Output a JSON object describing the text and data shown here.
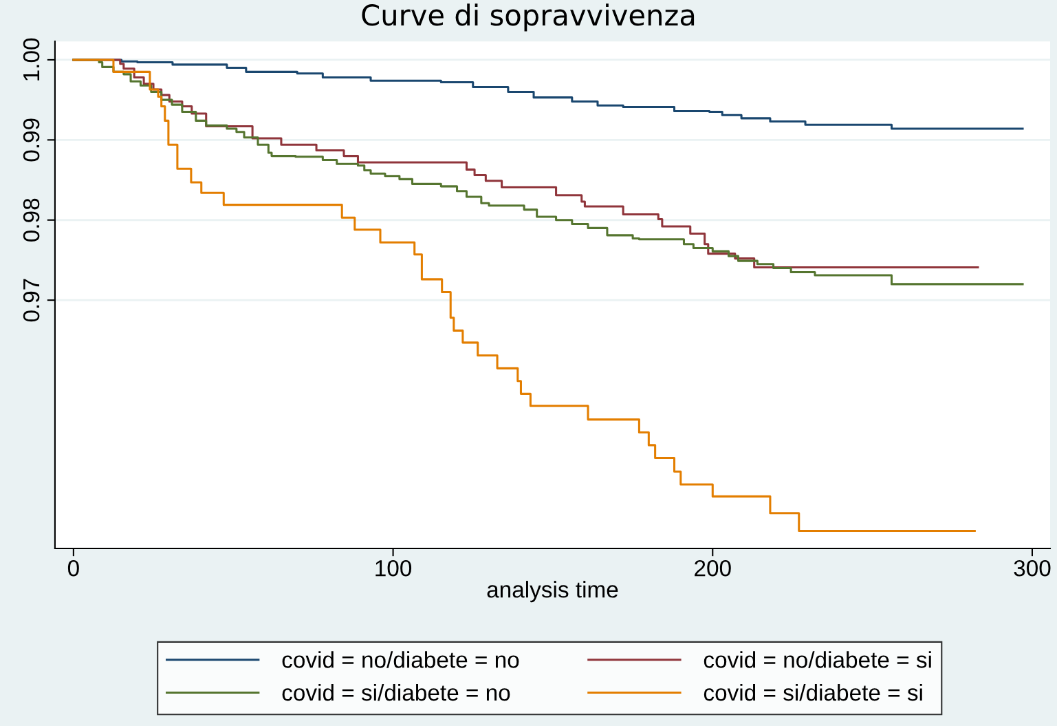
{
  "chart_data": {
    "type": "step",
    "title": "Curve di sopravvivenza",
    "xlabel": "analysis time",
    "xlim": [
      -5.8,
      305.6
    ],
    "xticks": [
      0,
      100,
      200,
      300
    ],
    "ylim": [
      0.939,
      1.0023
    ],
    "yticks": [
      {
        "value": 1.0,
        "label": "1.00"
      },
      {
        "value": 0.99,
        "label": "0.99"
      },
      {
        "value": 0.98,
        "label": "0.98"
      },
      {
        "value": 0.97,
        "label": "0.97"
      }
    ],
    "grid": "y",
    "legend": "bottom",
    "line_style": "solid",
    "marker": "none",
    "series": [
      {
        "name": "covid = no/diabete = no",
        "color": "#1a476f",
        "x": [
          0,
          15,
          20,
          31,
          48,
          54,
          70,
          78,
          93,
          115,
          125,
          136,
          144,
          156,
          164,
          172,
          188,
          199,
          203,
          209,
          218,
          229,
          256,
          297
        ],
        "values": [
          1.0,
          0.9998,
          0.9997,
          0.9994,
          0.999,
          0.9985,
          0.9983,
          0.9978,
          0.9974,
          0.9972,
          0.9966,
          0.996,
          0.9953,
          0.9948,
          0.9943,
          0.9941,
          0.9936,
          0.9935,
          0.9931,
          0.9927,
          0.9923,
          0.9919,
          0.9914,
          0.9914
        ]
      },
      {
        "name": "covid = no/diabete = si",
        "color": "#90353b",
        "x": [
          0,
          14.6,
          15.7,
          19,
          22,
          25,
          27.5,
          30,
          34,
          37,
          41.5,
          56,
          65,
          76,
          84.6,
          89,
          123,
          125.5,
          129,
          134,
          151,
          159,
          160,
          172,
          183,
          184.2,
          193,
          197.5,
          198.6,
          207,
          213,
          283
        ],
        "values": [
          1.0,
          0.9995,
          0.9989,
          0.9978,
          0.997,
          0.9963,
          0.9956,
          0.9948,
          0.9942,
          0.9933,
          0.9917,
          0.9902,
          0.9894,
          0.9887,
          0.988,
          0.9872,
          0.9863,
          0.9856,
          0.9849,
          0.9841,
          0.9831,
          0.9823,
          0.9817,
          0.9807,
          0.9801,
          0.9792,
          0.9783,
          0.977,
          0.9758,
          0.9752,
          0.9741,
          0.9741
        ]
      },
      {
        "name": "covid = si/diabete = no",
        "color": "#55752f",
        "x": [
          0,
          8,
          9,
          12.5,
          15.7,
          17.9,
          21,
          24.3,
          27.5,
          30.8,
          34,
          38.3,
          41.5,
          48,
          51,
          53.4,
          57.7,
          61,
          62,
          69.5,
          78,
          82.4,
          89,
          91,
          93,
          97.5,
          102,
          106,
          115,
          120,
          123,
          127.6,
          130,
          141,
          145,
          151,
          156,
          161,
          167,
          175,
          177,
          191,
          194,
          200,
          205,
          208,
          214,
          219,
          224.5,
          232,
          256,
          297
        ],
        "values": [
          1.0,
          0.9997,
          0.9991,
          0.9985,
          0.9982,
          0.9973,
          0.9968,
          0.996,
          0.995,
          0.9944,
          0.9935,
          0.9924,
          0.9918,
          0.9914,
          0.991,
          0.9903,
          0.9894,
          0.9884,
          0.988,
          0.9879,
          0.9875,
          0.987,
          0.9868,
          0.9862,
          0.9858,
          0.9855,
          0.9851,
          0.9845,
          0.9842,
          0.9836,
          0.9829,
          0.9821,
          0.9818,
          0.9813,
          0.9804,
          0.98,
          0.9795,
          0.979,
          0.9781,
          0.9777,
          0.9776,
          0.977,
          0.9765,
          0.9761,
          0.9755,
          0.9749,
          0.9745,
          0.974,
          0.9735,
          0.9731,
          0.972,
          0.972
        ]
      },
      {
        "name": "covid = si/diabete = si",
        "color": "#e37e00",
        "x": [
          0,
          12.5,
          23.9,
          26.5,
          27.5,
          28.6,
          29.7,
          32.5,
          36.8,
          40,
          47,
          84,
          88,
          96,
          106.7,
          109,
          115.3,
          118,
          119,
          121.8,
          126.5,
          132.6,
          139,
          140,
          143,
          161,
          177,
          180,
          182,
          188,
          190,
          200,
          218,
          227,
          282
        ],
        "values": [
          1.0,
          0.9985,
          0.9963,
          0.9954,
          0.9942,
          0.9924,
          0.9894,
          0.9864,
          0.9847,
          0.9834,
          0.9819,
          0.9803,
          0.9788,
          0.9772,
          0.9757,
          0.9726,
          0.971,
          0.9678,
          0.9662,
          0.9647,
          0.9631,
          0.9615,
          0.9599,
          0.9583,
          0.9568,
          0.9551,
          0.9535,
          0.9519,
          0.9503,
          0.9486,
          0.947,
          0.9455,
          0.9434,
          0.9412,
          0.9412
        ]
      }
    ]
  }
}
